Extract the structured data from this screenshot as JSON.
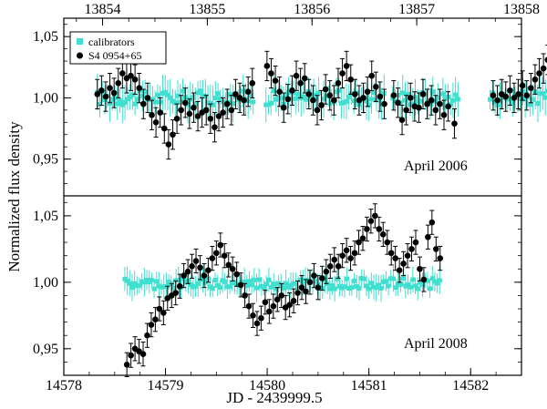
{
  "chart_data": [
    {
      "panel": "top",
      "type": "scatter",
      "annotation": "April 2006",
      "x_axis_top": {
        "ticks": [
          13854,
          13855,
          13856,
          13857,
          13858
        ],
        "xlim": [
          13853.63,
          13858.0
        ]
      },
      "ylim": [
        0.92,
        1.065
      ],
      "yticks": [
        0.95,
        1.0,
        1.05
      ],
      "ytick_labels": [
        "0,95",
        "1,00",
        "1,05"
      ],
      "legend": {
        "placement": "top-left",
        "entries": [
          {
            "label": "calibrators",
            "marker": "square",
            "color": "#40e0d0"
          },
          {
            "label": "S4 0954+65",
            "marker": "circle",
            "color": "#000000"
          }
        ]
      },
      "series": [
        {
          "name": "calibrators",
          "color": "#40e0d0",
          "marker": "square",
          "segments": [
            [
              13853.95,
              13855.45
            ],
            [
              13855.56,
              13856.7
            ],
            [
              13856.77,
              13857.4
            ],
            [
              13857.7,
              13858.4
            ]
          ],
          "y_mean": 1.0,
          "y_spread": 0.006,
          "err": 0.013
        },
        {
          "name": "S4 0954+65",
          "color": "#000000",
          "marker": "circle",
          "err": 0.012,
          "points": [
            [
              13853.95,
              1.003
            ],
            [
              13853.99,
              1.006
            ],
            [
              13854.03,
              1.001
            ],
            [
              13854.07,
              1.008
            ],
            [
              13854.11,
              1.004
            ],
            [
              13854.15,
              1.012
            ],
            [
              13854.19,
              1.02
            ],
            [
              13854.23,
              1.016
            ],
            [
              13854.27,
              1.018
            ],
            [
              13854.31,
              1.015
            ],
            [
              13854.35,
              1.008
            ],
            [
              13854.39,
              0.995
            ],
            [
              13854.43,
              1.0
            ],
            [
              13854.47,
              0.986
            ],
            [
              13854.51,
              0.98
            ],
            [
              13854.55,
              0.988
            ],
            [
              13854.59,
              0.975
            ],
            [
              13854.63,
              0.962
            ],
            [
              13854.67,
              0.97
            ],
            [
              13854.71,
              0.983
            ],
            [
              13854.75,
              0.99
            ],
            [
              13854.79,
              0.996
            ],
            [
              13854.83,
              0.987
            ],
            [
              13854.87,
              0.992
            ],
            [
              13854.91,
              0.985
            ],
            [
              13854.95,
              0.988
            ],
            [
              13854.99,
              0.99
            ],
            [
              13855.03,
              0.983
            ],
            [
              13855.07,
              0.976
            ],
            [
              13855.11,
              0.985
            ],
            [
              13855.15,
              0.988
            ],
            [
              13855.19,
              0.995
            ],
            [
              13855.23,
              0.99
            ],
            [
              13855.27,
              1.003
            ],
            [
              13855.31,
              1.0
            ],
            [
              13855.35,
              0.998
            ],
            [
              13855.39,
              1.005
            ],
            [
              13855.43,
              1.012
            ],
            [
              13855.57,
              1.026
            ],
            [
              13855.61,
              1.02
            ],
            [
              13855.65,
              1.014
            ],
            [
              13855.69,
              1.005
            ],
            [
              13855.73,
              0.992
            ],
            [
              13855.77,
              0.999
            ],
            [
              13855.81,
              1.006
            ],
            [
              13855.85,
              1.018
            ],
            [
              13855.89,
              1.012
            ],
            [
              13855.93,
              1.016
            ],
            [
              13855.97,
              1.003
            ],
            [
              13856.01,
              0.998
            ],
            [
              13856.05,
              0.99
            ],
            [
              13856.09,
              0.994
            ],
            [
              13856.13,
              1.007
            ],
            [
              13856.17,
              1.002
            ],
            [
              13856.21,
              0.998
            ],
            [
              13856.25,
              1.012
            ],
            [
              13856.29,
              1.02
            ],
            [
              13856.33,
              1.026
            ],
            [
              13856.37,
              1.015
            ],
            [
              13856.41,
              1.003
            ],
            [
              13856.45,
              0.998
            ],
            [
              13856.49,
              1.0
            ],
            [
              13856.53,
              1.005
            ],
            [
              13856.57,
              1.018
            ],
            [
              13856.61,
              1.009
            ],
            [
              13856.65,
              1.001
            ],
            [
              13856.69,
              0.995
            ],
            [
              13856.78,
              1.002
            ],
            [
              13856.82,
              0.996
            ],
            [
              13856.86,
              0.982
            ],
            [
              13856.9,
              0.99
            ],
            [
              13856.94,
              1.0
            ],
            [
              13856.98,
              0.993
            ],
            [
              13857.02,
              0.992
            ],
            [
              13857.06,
              1.003
            ],
            [
              13857.1,
              0.995
            ],
            [
              13857.14,
              0.998
            ],
            [
              13857.18,
              0.99
            ],
            [
              13857.22,
              0.995
            ],
            [
              13857.26,
              0.986
            ],
            [
              13857.3,
              0.993
            ],
            [
              13857.36,
              0.979
            ],
            [
              13857.73,
              1.002
            ],
            [
              13857.77,
              0.998
            ],
            [
              13857.81,
              1.003
            ],
            [
              13857.85,
              1.001
            ],
            [
              13857.89,
              1.006
            ],
            [
              13857.93,
              1.0
            ],
            [
              13857.97,
              1.003
            ],
            [
              13858.01,
              1.01
            ],
            [
              13858.05,
              1.002
            ],
            [
              13858.09,
              1.008
            ],
            [
              13858.13,
              1.015
            ],
            [
              13858.17,
              1.02
            ],
            [
              13858.21,
              1.024
            ],
            [
              13858.25,
              1.031
            ],
            [
              13858.29,
              1.027
            ],
            [
              13858.33,
              1.019
            ],
            [
              13858.37,
              1.008
            ]
          ]
        }
      ]
    },
    {
      "panel": "bottom",
      "type": "scatter",
      "annotation": "April 2008",
      "xlabel": "JD - 2439999.5",
      "xlim": [
        14578.0,
        14582.5
      ],
      "xticks": [
        14578,
        14579,
        14580,
        14581,
        14582
      ],
      "ylim": [
        0.93,
        1.065
      ],
      "yticks": [
        0.95,
        1.0,
        1.05
      ],
      "ytick_labels": [
        "0,95",
        "1,00",
        "1,05"
      ],
      "series": [
        {
          "name": "calibrators",
          "color": "#40e0d0",
          "marker": "square",
          "segments": [
            [
              14578.6,
              14581.7
            ]
          ],
          "y_mean": 0.999,
          "y_spread": 0.004,
          "err": 0.009
        },
        {
          "name": "S4 0954+65",
          "color": "#000000",
          "marker": "circle",
          "err": 0.009,
          "points": [
            [
              14578.62,
              0.938
            ],
            [
              14578.66,
              0.945
            ],
            [
              14578.7,
              0.95
            ],
            [
              14578.74,
              0.948
            ],
            [
              14578.78,
              0.946
            ],
            [
              14578.82,
              0.96
            ],
            [
              14578.86,
              0.968
            ],
            [
              14578.9,
              0.972
            ],
            [
              14578.94,
              0.98
            ],
            [
              14578.98,
              0.977
            ],
            [
              14579.02,
              0.988
            ],
            [
              14579.06,
              0.99
            ],
            [
              14579.1,
              0.992
            ],
            [
              14579.14,
              0.997
            ],
            [
              14579.18,
              1.005
            ],
            [
              14579.22,
              1.008
            ],
            [
              14579.26,
              1.012
            ],
            [
              14579.3,
              1.016
            ],
            [
              14579.34,
              1.011
            ],
            [
              14579.38,
              1.005
            ],
            [
              14579.42,
              1.009
            ],
            [
              14579.46,
              1.018
            ],
            [
              14579.5,
              1.022
            ],
            [
              14579.54,
              1.028
            ],
            [
              14579.58,
              1.02
            ],
            [
              14579.62,
              1.013
            ],
            [
              14579.66,
              1.01
            ],
            [
              14579.7,
              1.006
            ],
            [
              14579.74,
              0.998
            ],
            [
              14579.78,
              0.99
            ],
            [
              14579.82,
              0.982
            ],
            [
              14579.86,
              0.975
            ],
            [
              14579.9,
              0.969
            ],
            [
              14579.94,
              0.973
            ],
            [
              14579.98,
              0.985
            ],
            [
              14580.02,
              0.978
            ],
            [
              14580.06,
              0.982
            ],
            [
              14580.1,
              0.987
            ],
            [
              14580.14,
              0.99
            ],
            [
              14580.18,
              0.981
            ],
            [
              14580.22,
              0.983
            ],
            [
              14580.26,
              0.986
            ],
            [
              14580.3,
              0.992
            ],
            [
              14580.34,
              0.996
            ],
            [
              14580.38,
              0.993
            ],
            [
              14580.42,
              1.0
            ],
            [
              14580.46,
              1.005
            ],
            [
              14580.5,
              0.996
            ],
            [
              14580.54,
              1.003
            ],
            [
              14580.58,
              1.008
            ],
            [
              14580.62,
              1.012
            ],
            [
              14580.66,
              1.017
            ],
            [
              14580.7,
              1.012
            ],
            [
              14580.74,
              1.02
            ],
            [
              14580.78,
              1.024
            ],
            [
              14580.82,
              1.018
            ],
            [
              14580.86,
              1.022
            ],
            [
              14580.9,
              1.03
            ],
            [
              14580.94,
              1.033
            ],
            [
              14580.98,
              1.04
            ],
            [
              14581.02,
              1.046
            ],
            [
              14581.06,
              1.05
            ],
            [
              14581.1,
              1.04
            ],
            [
              14581.14,
              1.036
            ],
            [
              14581.18,
              1.03
            ],
            [
              14581.22,
              1.022
            ],
            [
              14581.26,
              1.018
            ],
            [
              14581.3,
              1.009
            ],
            [
              14581.34,
              1.014
            ],
            [
              14581.38,
              1.02
            ],
            [
              14581.42,
              1.025
            ],
            [
              14581.46,
              1.03
            ],
            [
              14581.5,
              1.01
            ],
            [
              14581.54,
              1.002
            ],
            [
              14581.58,
              1.034
            ],
            [
              14581.62,
              1.045
            ],
            [
              14581.66,
              1.025
            ],
            [
              14581.7,
              1.018
            ]
          ]
        }
      ]
    }
  ],
  "shared": {
    "ylabel": "Normalized flux density"
  }
}
